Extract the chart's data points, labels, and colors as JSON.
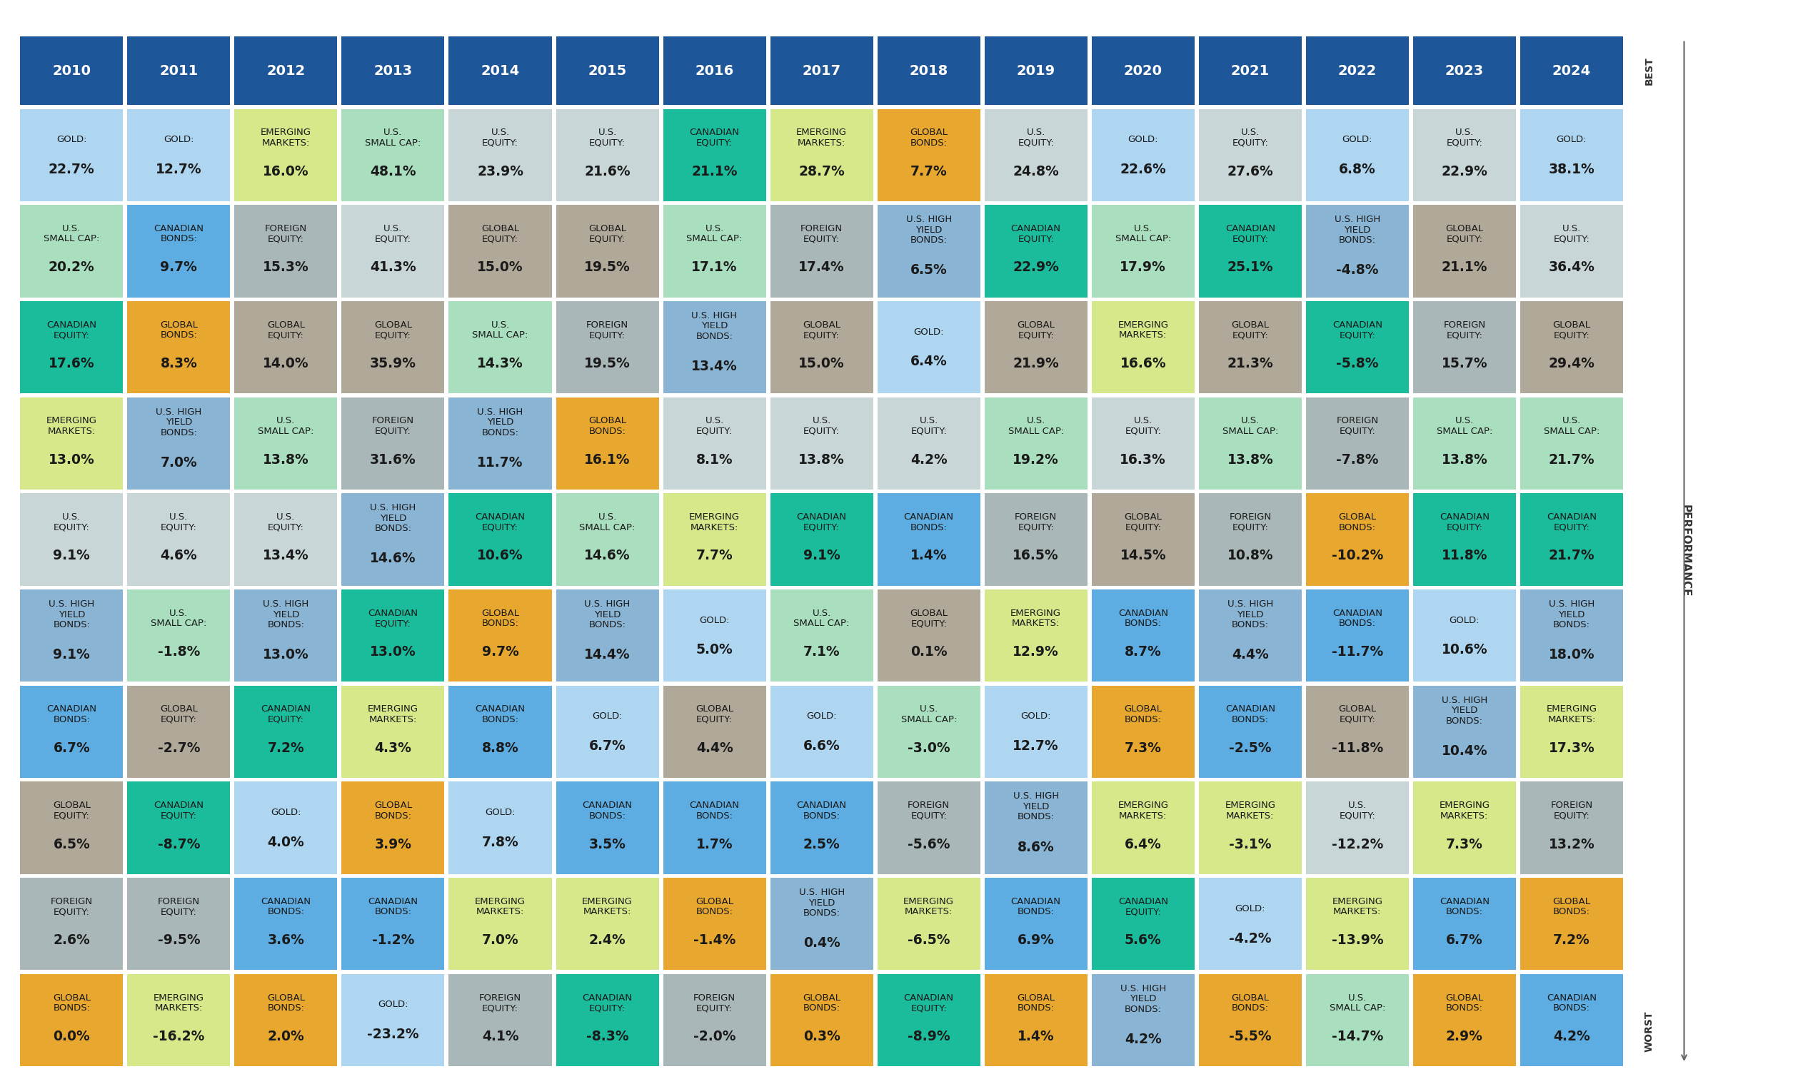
{
  "years": [
    "2010",
    "2011",
    "2012",
    "2013",
    "2014",
    "2015",
    "2016",
    "2017",
    "2018",
    "2019",
    "2020",
    "2021",
    "2022",
    "2023",
    "2024"
  ],
  "header_bg": "#1e5799",
  "header_text": "#ffffff",
  "colors": {
    "GOLD": "#aed6f1",
    "U.S. SMALL CAP": "#a9dfbf",
    "CANADIAN BONDS": "#5dade2",
    "FOREIGN EQUITY": "#aab7b8",
    "U.S. EQUITY": "#c8d6d8",
    "GLOBAL EQUITY": "#b0a8a0",
    "EMERGING MARKETS": "#dce8a0",
    "CANADIAN EQUITY": "#1abc9c",
    "GLOBAL BONDS": "#e8a830",
    "U.S. HIGH YIELD BONDS": "#8ab4d4"
  },
  "cells": [
    [
      {
        "asset": "GOLD",
        "value": "22.7%"
      },
      {
        "asset": "GOLD",
        "value": "12.7%"
      },
      {
        "asset": "EMERGING MARKETS",
        "value": "16.0%"
      },
      {
        "asset": "U.S. SMALL CAP",
        "value": "48.1%"
      },
      {
        "asset": "U.S. EQUITY",
        "value": "23.9%"
      },
      {
        "asset": "U.S. EQUITY",
        "value": "21.6%"
      },
      {
        "asset": "CANADIAN EQUITY",
        "value": "21.1%"
      },
      {
        "asset": "EMERGING MARKETS",
        "value": "28.7%"
      },
      {
        "asset": "GLOBAL BONDS",
        "value": "7.7%"
      },
      {
        "asset": "U.S. EQUITY",
        "value": "24.8%"
      },
      {
        "asset": "GOLD",
        "value": "22.6%"
      },
      {
        "asset": "U.S. EQUITY",
        "value": "27.6%"
      },
      {
        "asset": "GOLD",
        "value": "6.8%"
      },
      {
        "asset": "U.S. EQUITY",
        "value": "22.9%"
      },
      {
        "asset": "GOLD",
        "value": "38.1%"
      }
    ],
    [
      {
        "asset": "U.S. SMALL CAP",
        "value": "20.2%"
      },
      {
        "asset": "CANADIAN BONDS",
        "value": "9.7%"
      },
      {
        "asset": "FOREIGN EQUITY",
        "value": "15.3%"
      },
      {
        "asset": "U.S. EQUITY",
        "value": "41.3%"
      },
      {
        "asset": "GLOBAL EQUITY",
        "value": "15.0%"
      },
      {
        "asset": "GLOBAL EQUITY",
        "value": "19.5%"
      },
      {
        "asset": "U.S. SMALL CAP",
        "value": "17.1%"
      },
      {
        "asset": "FOREIGN EQUITY",
        "value": "17.4%"
      },
      {
        "asset": "U.S. HIGH YIELD BONDS",
        "value": "6.5%"
      },
      {
        "asset": "CANADIAN EQUITY",
        "value": "22.9%"
      },
      {
        "asset": "U.S. SMALL CAP",
        "value": "17.9%"
      },
      {
        "asset": "CANADIAN EQUITY",
        "value": "25.1%"
      },
      {
        "asset": "U.S. HIGH YIELD BONDS",
        "value": "-4.8%"
      },
      {
        "asset": "GLOBAL EQUITY",
        "value": "21.1%"
      },
      {
        "asset": "U.S. EQUITY",
        "value": "36.4%"
      }
    ],
    [
      {
        "asset": "CANADIAN EQUITY",
        "value": "17.6%"
      },
      {
        "asset": "GLOBAL BONDS",
        "value": "8.3%"
      },
      {
        "asset": "GLOBAL EQUITY",
        "value": "14.0%"
      },
      {
        "asset": "GLOBAL EQUITY",
        "value": "35.9%"
      },
      {
        "asset": "U.S. SMALL CAP",
        "value": "14.3%"
      },
      {
        "asset": "FOREIGN EQUITY",
        "value": "19.5%"
      },
      {
        "asset": "U.S. HIGH YIELD BONDS",
        "value": "13.4%"
      },
      {
        "asset": "GLOBAL EQUITY",
        "value": "15.0%"
      },
      {
        "asset": "GOLD",
        "value": "6.4%"
      },
      {
        "asset": "GLOBAL EQUITY",
        "value": "21.9%"
      },
      {
        "asset": "EMERGING MARKETS",
        "value": "16.6%"
      },
      {
        "asset": "GLOBAL EQUITY",
        "value": "21.3%"
      },
      {
        "asset": "CANADIAN EQUITY",
        "value": "-5.8%"
      },
      {
        "asset": "FOREIGN EQUITY",
        "value": "15.7%"
      },
      {
        "asset": "GLOBAL EQUITY",
        "value": "29.4%"
      }
    ],
    [
      {
        "asset": "EMERGING MARKETS",
        "value": "13.0%"
      },
      {
        "asset": "U.S. HIGH YIELD BONDS",
        "value": "7.0%"
      },
      {
        "asset": "U.S. SMALL CAP",
        "value": "13.8%"
      },
      {
        "asset": "FOREIGN EQUITY",
        "value": "31.6%"
      },
      {
        "asset": "U.S. HIGH YIELD BONDS",
        "value": "11.7%"
      },
      {
        "asset": "GLOBAL BONDS",
        "value": "16.1%"
      },
      {
        "asset": "U.S. EQUITY",
        "value": "8.1%"
      },
      {
        "asset": "U.S. EQUITY",
        "value": "13.8%"
      },
      {
        "asset": "U.S. EQUITY",
        "value": "4.2%"
      },
      {
        "asset": "U.S. SMALL CAP",
        "value": "19.2%"
      },
      {
        "asset": "U.S. EQUITY",
        "value": "16.3%"
      },
      {
        "asset": "U.S. SMALL CAP",
        "value": "13.8%"
      },
      {
        "asset": "FOREIGN EQUITY",
        "value": "-7.8%"
      },
      {
        "asset": "U.S. SMALL CAP",
        "value": "13.8%"
      },
      {
        "asset": "U.S. SMALL CAP",
        "value": "21.7%"
      }
    ],
    [
      {
        "asset": "U.S. EQUITY",
        "value": "9.1%"
      },
      {
        "asset": "U.S. EQUITY",
        "value": "4.6%"
      },
      {
        "asset": "U.S. EQUITY",
        "value": "13.4%"
      },
      {
        "asset": "U.S. HIGH YIELD BONDS",
        "value": "14.6%"
      },
      {
        "asset": "CANADIAN EQUITY",
        "value": "10.6%"
      },
      {
        "asset": "U.S. SMALL CAP",
        "value": "14.6%"
      },
      {
        "asset": "EMERGING MARKETS",
        "value": "7.7%"
      },
      {
        "asset": "CANADIAN EQUITY",
        "value": "9.1%"
      },
      {
        "asset": "CANADIAN BONDS",
        "value": "1.4%"
      },
      {
        "asset": "FOREIGN EQUITY",
        "value": "16.5%"
      },
      {
        "asset": "GLOBAL EQUITY",
        "value": "14.5%"
      },
      {
        "asset": "FOREIGN EQUITY",
        "value": "10.8%"
      },
      {
        "asset": "GLOBAL BONDS",
        "value": "-10.2%"
      },
      {
        "asset": "CANADIAN EQUITY",
        "value": "11.8%"
      },
      {
        "asset": "CANADIAN EQUITY",
        "value": "21.7%"
      }
    ],
    [
      {
        "asset": "U.S. HIGH YIELD BONDS",
        "value": "9.1%"
      },
      {
        "asset": "U.S. SMALL CAP",
        "value": "-1.8%"
      },
      {
        "asset": "U.S. HIGH YIELD BONDS",
        "value": "13.0%"
      },
      {
        "asset": "CANADIAN EQUITY",
        "value": "13.0%"
      },
      {
        "asset": "GLOBAL BONDS",
        "value": "9.7%"
      },
      {
        "asset": "U.S. HIGH YIELD BONDS",
        "value": "14.4%"
      },
      {
        "asset": "GOLD",
        "value": "5.0%"
      },
      {
        "asset": "U.S. SMALL CAP",
        "value": "7.1%"
      },
      {
        "asset": "GLOBAL EQUITY",
        "value": "0.1%"
      },
      {
        "asset": "EMERGING MARKETS",
        "value": "12.9%"
      },
      {
        "asset": "CANADIAN BONDS",
        "value": "8.7%"
      },
      {
        "asset": "U.S. HIGH YIELD BONDS",
        "value": "4.4%"
      },
      {
        "asset": "CANADIAN BONDS",
        "value": "-11.7%"
      },
      {
        "asset": "GOLD",
        "value": "10.6%"
      },
      {
        "asset": "U.S. HIGH YIELD BONDS",
        "value": "18.0%"
      }
    ],
    [
      {
        "asset": "CANADIAN BONDS",
        "value": "6.7%"
      },
      {
        "asset": "GLOBAL EQUITY",
        "value": "-2.7%"
      },
      {
        "asset": "CANADIAN EQUITY",
        "value": "7.2%"
      },
      {
        "asset": "EMERGING MARKETS",
        "value": "4.3%"
      },
      {
        "asset": "CANADIAN BONDS",
        "value": "8.8%"
      },
      {
        "asset": "GOLD",
        "value": "6.7%"
      },
      {
        "asset": "GLOBAL EQUITY",
        "value": "4.4%"
      },
      {
        "asset": "GOLD",
        "value": "6.6%"
      },
      {
        "asset": "U.S. SMALL CAP",
        "value": "-3.0%"
      },
      {
        "asset": "GOLD",
        "value": "12.7%"
      },
      {
        "asset": "GLOBAL BONDS",
        "value": "7.3%"
      },
      {
        "asset": "CANADIAN BONDS",
        "value": "-2.5%"
      },
      {
        "asset": "GLOBAL EQUITY",
        "value": "-11.8%"
      },
      {
        "asset": "U.S. HIGH YIELD BONDS",
        "value": "10.4%"
      },
      {
        "asset": "EMERGING MARKETS",
        "value": "17.3%"
      }
    ],
    [
      {
        "asset": "GLOBAL EQUITY",
        "value": "6.5%"
      },
      {
        "asset": "CANADIAN EQUITY",
        "value": "-8.7%"
      },
      {
        "asset": "GOLD",
        "value": "4.0%"
      },
      {
        "asset": "GLOBAL BONDS",
        "value": "3.9%"
      },
      {
        "asset": "GOLD",
        "value": "7.8%"
      },
      {
        "asset": "CANADIAN BONDS",
        "value": "3.5%"
      },
      {
        "asset": "CANADIAN BONDS",
        "value": "1.7%"
      },
      {
        "asset": "CANADIAN BONDS",
        "value": "2.5%"
      },
      {
        "asset": "FOREIGN EQUITY",
        "value": "-5.6%"
      },
      {
        "asset": "U.S. HIGH YIELD BONDS",
        "value": "8.6%"
      },
      {
        "asset": "EMERGING MARKETS",
        "value": "6.4%"
      },
      {
        "asset": "EMERGING MARKETS",
        "value": "-3.1%"
      },
      {
        "asset": "U.S. EQUITY",
        "value": "-12.2%"
      },
      {
        "asset": "EMERGING MARKETS",
        "value": "7.3%"
      },
      {
        "asset": "FOREIGN EQUITY",
        "value": "13.2%"
      }
    ],
    [
      {
        "asset": "FOREIGN EQUITY",
        "value": "2.6%"
      },
      {
        "asset": "FOREIGN EQUITY",
        "value": "-9.5%"
      },
      {
        "asset": "CANADIAN BONDS",
        "value": "3.6%"
      },
      {
        "asset": "CANADIAN BONDS",
        "value": "-1.2%"
      },
      {
        "asset": "EMERGING MARKETS",
        "value": "7.0%"
      },
      {
        "asset": "EMERGING MARKETS",
        "value": "2.4%"
      },
      {
        "asset": "GLOBAL BONDS",
        "value": "-1.4%"
      },
      {
        "asset": "U.S. HIGH YIELD BONDS",
        "value": "0.4%"
      },
      {
        "asset": "EMERGING MARKETS",
        "value": "-6.5%"
      },
      {
        "asset": "CANADIAN BONDS",
        "value": "6.9%"
      },
      {
        "asset": "CANADIAN EQUITY",
        "value": "5.6%"
      },
      {
        "asset": "GOLD",
        "value": "-4.2%"
      },
      {
        "asset": "EMERGING MARKETS",
        "value": "-13.9%"
      },
      {
        "asset": "CANADIAN BONDS",
        "value": "6.7%"
      },
      {
        "asset": "GLOBAL BONDS",
        "value": "7.2%"
      }
    ],
    [
      {
        "asset": "GLOBAL BONDS",
        "value": "0.0%"
      },
      {
        "asset": "EMERGING MARKETS",
        "value": "-16.2%"
      },
      {
        "asset": "GLOBAL BONDS",
        "value": "2.0%"
      },
      {
        "asset": "GOLD",
        "value": "-23.2%"
      },
      {
        "asset": "FOREIGN EQUITY",
        "value": "4.1%"
      },
      {
        "asset": "CANADIAN EQUITY",
        "value": "-8.3%"
      },
      {
        "asset": "FOREIGN EQUITY",
        "value": "-2.0%"
      },
      {
        "asset": "GLOBAL BONDS",
        "value": "0.3%"
      },
      {
        "asset": "CANADIAN EQUITY",
        "value": "-8.9%"
      },
      {
        "asset": "GLOBAL BONDS",
        "value": "1.4%"
      },
      {
        "asset": "U.S. HIGH YIELD BONDS",
        "value": "4.2%"
      },
      {
        "asset": "GLOBAL BONDS",
        "value": "-5.5%"
      },
      {
        "asset": "U.S. SMALL CAP",
        "value": "-14.7%"
      },
      {
        "asset": "GLOBAL BONDS",
        "value": "2.9%"
      },
      {
        "asset": "CANADIAN BONDS",
        "value": "4.2%"
      }
    ]
  ]
}
